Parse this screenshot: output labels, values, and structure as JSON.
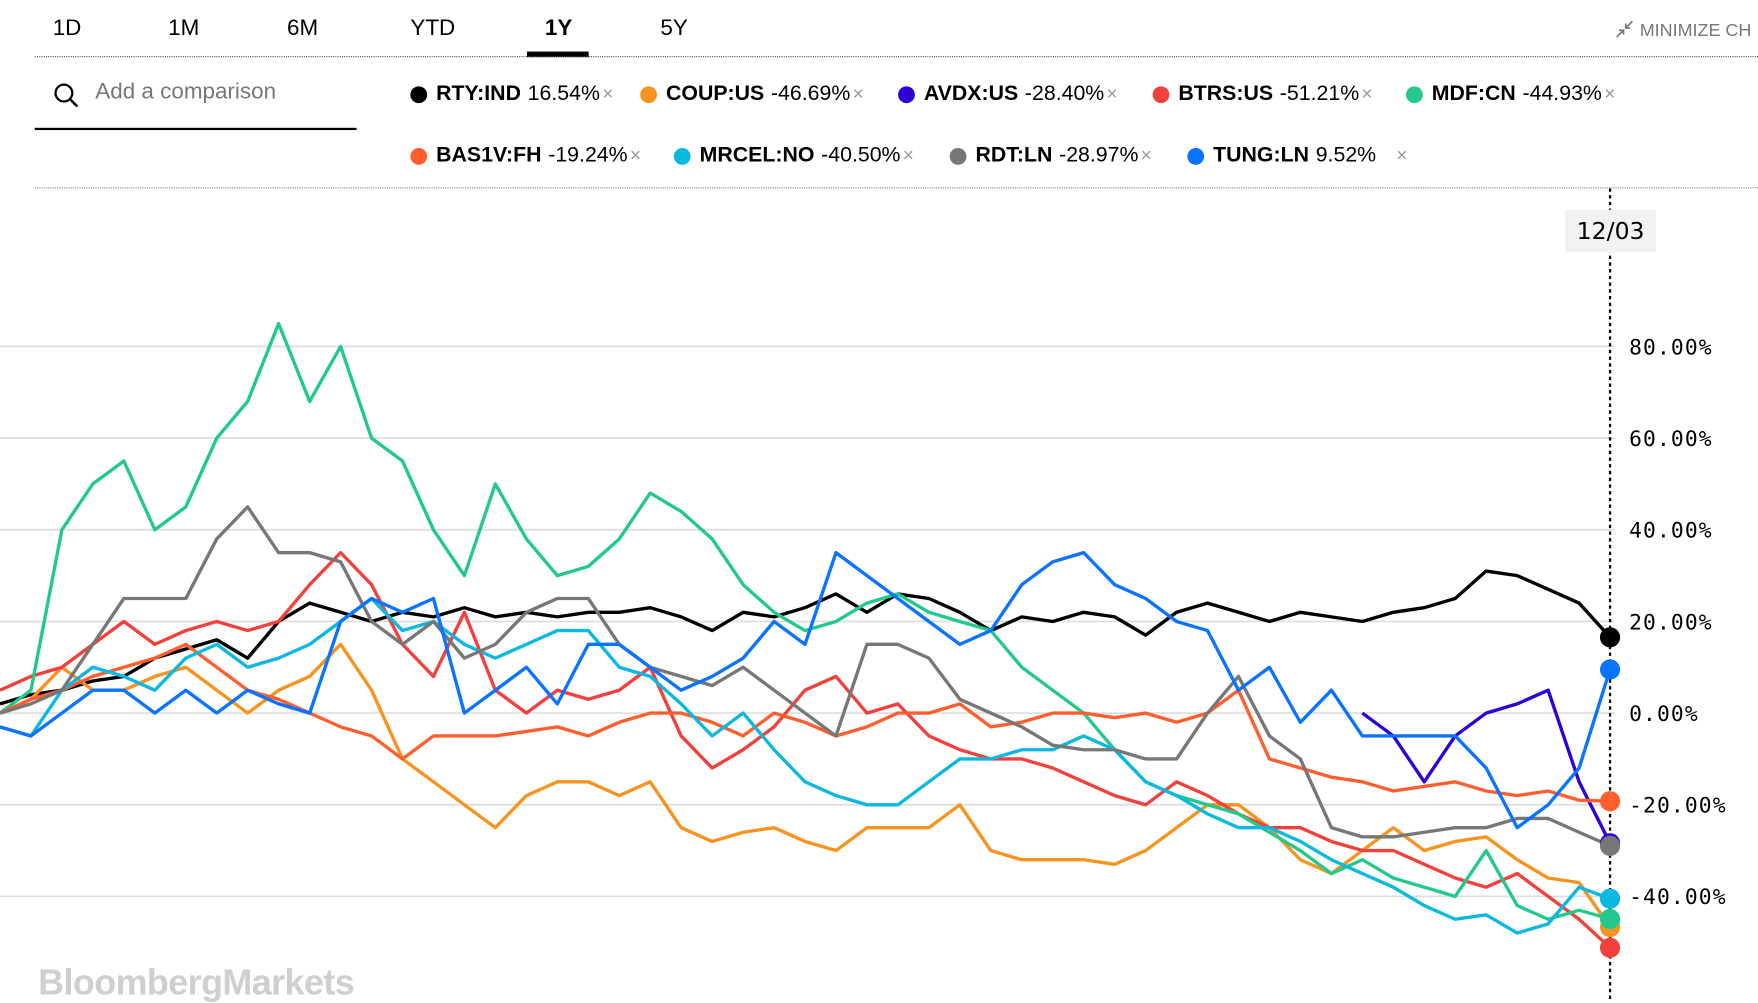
{
  "tabs": [
    {
      "label": "1D"
    },
    {
      "label": "1M"
    },
    {
      "label": "6M"
    },
    {
      "label": "YTD"
    },
    {
      "label": "1Y",
      "active": true
    },
    {
      "label": "5Y"
    }
  ],
  "minimize_label": "MINIMIZE CH",
  "search": {
    "placeholder": "Add a comparison"
  },
  "close_glyph": "×",
  "date_label": "12/03",
  "watermark": "BloombergMarkets",
  "chart_data": {
    "type": "line",
    "title": "",
    "xlabel": "",
    "ylabel": "",
    "ylim": [
      -55,
      105
    ],
    "yticks": [
      "80.00%",
      "60.00%",
      "40.00%",
      "20.00%",
      "0.00%",
      "-20.00%",
      "-40.00%"
    ],
    "ytick_values": [
      80,
      60,
      40,
      20,
      0,
      -20,
      -40
    ],
    "grid": true,
    "legend_placement": "top",
    "x": [
      0,
      1,
      2,
      3,
      4,
      5,
      6,
      7,
      8,
      9,
      10,
      11,
      12,
      13,
      14,
      15,
      16,
      17,
      18,
      19,
      20,
      21,
      22,
      23,
      24,
      25,
      26,
      27,
      28,
      29,
      30,
      31,
      32,
      33,
      34,
      35,
      36,
      37,
      38,
      39,
      40,
      41,
      42,
      43,
      44,
      45,
      46,
      47,
      48,
      49,
      50,
      51,
      52
    ],
    "series": [
      {
        "name": "RTY:IND",
        "change": "16.54%",
        "color": "#000000",
        "values": [
          2,
          4,
          5,
          7,
          8,
          12,
          14,
          16,
          12,
          20,
          24,
          22,
          20,
          22,
          21,
          23,
          21,
          22,
          21,
          22,
          22,
          23,
          21,
          18,
          22,
          21,
          23,
          26,
          22,
          26,
          25,
          22,
          18,
          21,
          20,
          22,
          21,
          17,
          22,
          24,
          22,
          20,
          22,
          21,
          20,
          22,
          23,
          25,
          31,
          30,
          27,
          24,
          16.54
        ]
      },
      {
        "name": "COUP:US",
        "change": "-46.69%",
        "color": "#f7931e",
        "values": [
          0,
          3,
          10,
          5,
          5,
          8,
          10,
          5,
          0,
          5,
          8,
          15,
          5,
          -10,
          -15,
          -20,
          -25,
          -18,
          -15,
          -15,
          -18,
          -15,
          -25,
          -28,
          -26,
          -25,
          -28,
          -30,
          -25,
          -25,
          -25,
          -20,
          -30,
          -32,
          -32,
          -32,
          -33,
          -30,
          -25,
          -20,
          -20,
          -25,
          -32,
          -35,
          -30,
          -25,
          -30,
          -28,
          -27,
          -32,
          -36,
          -37,
          -46.69
        ]
      },
      {
        "name": "AVDX:US",
        "change": "-28.40%",
        "color": "#2e00d6",
        "values": [
          null,
          null,
          null,
          null,
          null,
          null,
          null,
          null,
          null,
          null,
          null,
          null,
          null,
          null,
          null,
          null,
          null,
          null,
          null,
          null,
          null,
          null,
          null,
          null,
          null,
          null,
          null,
          null,
          null,
          null,
          null,
          null,
          null,
          null,
          null,
          null,
          null,
          null,
          null,
          null,
          null,
          null,
          null,
          null,
          0,
          -5,
          -15,
          -5,
          0,
          2,
          5,
          -15,
          -28.4
        ]
      },
      {
        "name": "BTRS:US",
        "change": "-51.21%",
        "color": "#f2413d",
        "values": [
          5,
          8,
          10,
          15,
          20,
          15,
          18,
          20,
          18,
          20,
          28,
          35,
          28,
          15,
          8,
          22,
          5,
          0,
          5,
          3,
          5,
          10,
          -5,
          -12,
          -8,
          -3,
          5,
          8,
          0,
          2,
          -5,
          -8,
          -10,
          -10,
          -12,
          -15,
          -18,
          -20,
          -15,
          -18,
          -22,
          -25,
          -25,
          -28,
          -30,
          -30,
          -33,
          -36,
          -38,
          -35,
          -40,
          -45,
          -51.21
        ]
      },
      {
        "name": "MDF:CN",
        "change": "-44.93%",
        "color": "#22c98b",
        "values": [
          0,
          5,
          40,
          50,
          55,
          40,
          45,
          60,
          68,
          85,
          68,
          80,
          60,
          55,
          40,
          30,
          50,
          38,
          30,
          32,
          38,
          48,
          44,
          38,
          28,
          22,
          18,
          20,
          24,
          26,
          22,
          20,
          18,
          10,
          5,
          0,
          -8,
          -15,
          -18,
          -20,
          -22,
          -26,
          -30,
          -35,
          -32,
          -36,
          -38,
          -40,
          -30,
          -42,
          -45,
          -43,
          -44.93
        ]
      },
      {
        "name": "BAS1V:FH",
        "change": "-19.24%",
        "color": "#ff5f2e",
        "values": [
          0,
          3,
          5,
          8,
          10,
          12,
          15,
          10,
          5,
          3,
          0,
          -3,
          -5,
          -10,
          -5,
          -5,
          -5,
          -4,
          -3,
          -5,
          -2,
          0,
          0,
          -2,
          -5,
          0,
          -2,
          -5,
          -3,
          0,
          0,
          2,
          -3,
          -2,
          0,
          0,
          -1,
          0,
          -2,
          0,
          5,
          -10,
          -12,
          -14,
          -15,
          -17,
          -16,
          -15,
          -17,
          -18,
          -17,
          -19,
          -19.24
        ]
      },
      {
        "name": "MRCEL:NO",
        "change": "-40.50%",
        "color": "#0bb8e0",
        "values": [
          -3,
          -5,
          5,
          10,
          8,
          5,
          12,
          15,
          10,
          12,
          15,
          20,
          25,
          18,
          20,
          15,
          12,
          15,
          18,
          18,
          10,
          8,
          2,
          -5,
          0,
          -8,
          -15,
          -18,
          -20,
          -20,
          -15,
          -10,
          -10,
          -8,
          -8,
          -5,
          -8,
          -15,
          -18,
          -22,
          -25,
          -25,
          -28,
          -32,
          -35,
          -38,
          -42,
          -45,
          -44,
          -48,
          -46,
          -38,
          -40.5
        ]
      },
      {
        "name": "RDT:LN",
        "change": "-28.97%",
        "color": "#777777",
        "values": [
          0,
          2,
          5,
          15,
          25,
          25,
          25,
          38,
          45,
          35,
          35,
          33,
          20,
          15,
          20,
          12,
          15,
          22,
          25,
          25,
          15,
          10,
          8,
          6,
          10,
          5,
          0,
          -5,
          15,
          15,
          12,
          3,
          0,
          -3,
          -7,
          -8,
          -8,
          -10,
          -10,
          0,
          8,
          -5,
          -10,
          -25,
          -27,
          -27,
          -26,
          -25,
          -25,
          -23,
          -23,
          -26,
          -28.97
        ]
      },
      {
        "name": "TUNG:LN",
        "change": "9.52%",
        "color": "#0a73ff",
        "values": [
          -3,
          -5,
          0,
          5,
          5,
          0,
          5,
          0,
          5,
          2,
          0,
          20,
          25,
          22,
          25,
          0,
          5,
          10,
          2,
          15,
          15,
          10,
          5,
          8,
          12,
          20,
          15,
          35,
          30,
          25,
          20,
          15,
          18,
          28,
          33,
          35,
          28,
          25,
          20,
          18,
          5,
          10,
          -2,
          5,
          -5,
          -5,
          -5,
          -5,
          -12,
          -25,
          -20,
          -12,
          9.52
        ]
      }
    ]
  }
}
